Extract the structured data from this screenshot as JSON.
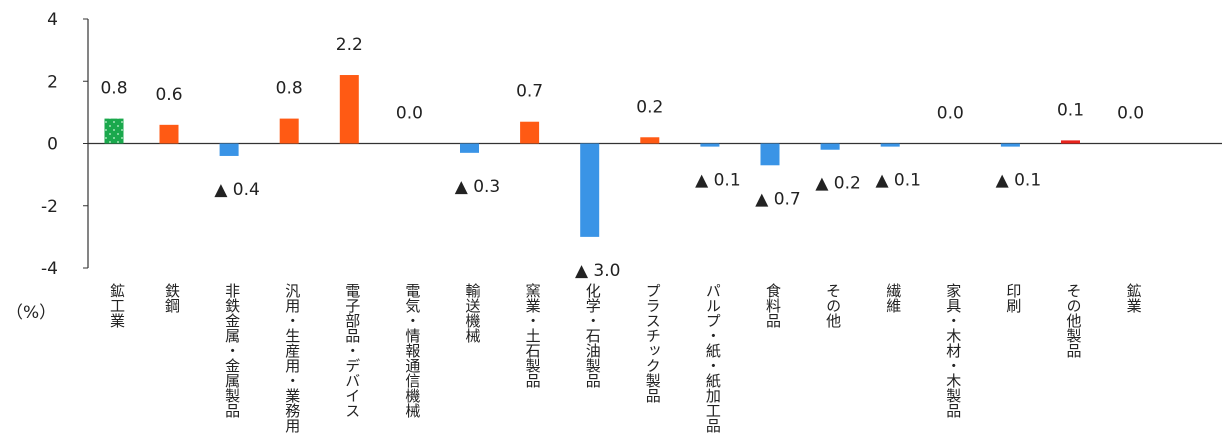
{
  "chart_data": {
    "type": "bar",
    "ylim": [
      -4,
      4
    ],
    "yticks": [
      4,
      2,
      0,
      -2,
      -4
    ],
    "y_unit_label": "（%）",
    "colors": {
      "positive": "#ff5a14",
      "negative": "#3a94e6",
      "mining": "#1aa84c",
      "other_products": "#e8231c"
    },
    "categories": [
      {
        "label": "鉱工業",
        "value": 0.8,
        "value_label": "0.8",
        "style": "mining"
      },
      {
        "label": "鉄鋼",
        "value": 0.6,
        "value_label": "0.6",
        "style": "positive"
      },
      {
        "label": "非鉄金属・金属製品",
        "value": -0.4,
        "value_label": "▲ 0.4",
        "style": "negative"
      },
      {
        "label": "汎用・生産用・業務用",
        "value": 0.8,
        "value_label": "0.8",
        "style": "positive"
      },
      {
        "label": "電子部品・デバイス",
        "value": 2.2,
        "value_label": "2.2",
        "style": "positive"
      },
      {
        "label": "電気・情報通信機械",
        "value": 0.0,
        "value_label": "0.0",
        "style": "positive"
      },
      {
        "label": "輸送機械",
        "value": -0.3,
        "value_label": "▲ 0.3",
        "style": "negative"
      },
      {
        "label": "窯業・土石製品",
        "value": 0.7,
        "value_label": "0.7",
        "style": "positive"
      },
      {
        "label": "化学・石油製品",
        "value": -3.0,
        "value_label": "▲ 3.0",
        "style": "negative"
      },
      {
        "label": "プラスチック製品",
        "value": 0.2,
        "value_label": "0.2",
        "style": "positive"
      },
      {
        "label": "パルプ・紙・紙加工品",
        "value": -0.1,
        "value_label": "▲ 0.1",
        "style": "negative"
      },
      {
        "label": "食料品",
        "value": -0.7,
        "value_label": "▲ 0.7",
        "style": "negative"
      },
      {
        "label": "その他",
        "value": -0.2,
        "value_label": "▲ 0.2",
        "style": "negative"
      },
      {
        "label": "繊維",
        "value": -0.1,
        "value_label": "▲ 0.1",
        "style": "negative"
      },
      {
        "label": "家具・木材・木製品",
        "value": 0.0,
        "value_label": "0.0",
        "style": "positive"
      },
      {
        "label": "印刷",
        "value": -0.1,
        "value_label": "▲ 0.1",
        "style": "negative"
      },
      {
        "label": "その他製品",
        "value": 0.1,
        "value_label": "0.1",
        "style": "other_products"
      },
      {
        "label": "鉱業",
        "value": 0.0,
        "value_label": "0.0",
        "style": "positive"
      }
    ]
  }
}
